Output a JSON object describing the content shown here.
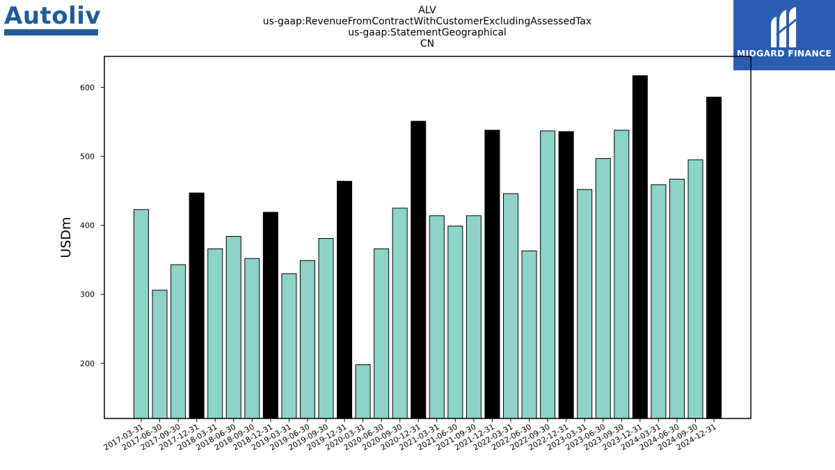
{
  "logos": {
    "left_text": "Autoliv",
    "right_text": "MIDGARD FINANCE",
    "left_color": "#1f5c99",
    "right_bg": "#2a5db0"
  },
  "chart_data": {
    "type": "bar",
    "title_lines": [
      "ALV",
      "us-gaap:RevenueFromContractWithCustomerExcludingAssessedTax",
      "us-gaap:StatementGeographical",
      "CN"
    ],
    "xlabel": "",
    "ylabel": "USDm",
    "ylim": [
      120,
      645
    ],
    "yticks": [
      200,
      300,
      400,
      500,
      600
    ],
    "grid": false,
    "colors": {
      "regular": "#8dd3c7",
      "highlight": "#000000",
      "edge": "#000000"
    },
    "categories": [
      "2017-03-31",
      "2017-06-30",
      "2017-09-30",
      "2017-12-31",
      "2018-03-31",
      "2018-06-30",
      "2018-09-30",
      "2018-12-31",
      "2019-03-31",
      "2019-06-30",
      "2019-09-30",
      "2019-12-31",
      "2020-03-31",
      "2020-06-30",
      "2020-09-30",
      "2020-12-31",
      "2021-03-31",
      "2021-06-30",
      "2021-09-30",
      "2021-12-31",
      "2022-03-31",
      "2022-06-30",
      "2022-09-30",
      "2022-12-31",
      "2023-03-31",
      "2023-06-30",
      "2023-09-30",
      "2023-12-31",
      "2024-03-31",
      "2024-06-30",
      "2024-09-30",
      "2024-12-31"
    ],
    "values": [
      423,
      306,
      343,
      447,
      366,
      384,
      352,
      419,
      330,
      349,
      381,
      464,
      198,
      366,
      425,
      551,
      414,
      399,
      414,
      538,
      446,
      363,
      537,
      536,
      452,
      497,
      538,
      617,
      459,
      467,
      495,
      586
    ],
    "highlighted": [
      false,
      false,
      false,
      true,
      false,
      false,
      false,
      true,
      false,
      false,
      false,
      true,
      false,
      false,
      false,
      true,
      false,
      false,
      false,
      true,
      false,
      false,
      false,
      true,
      false,
      false,
      false,
      true,
      false,
      false,
      false,
      true
    ]
  }
}
